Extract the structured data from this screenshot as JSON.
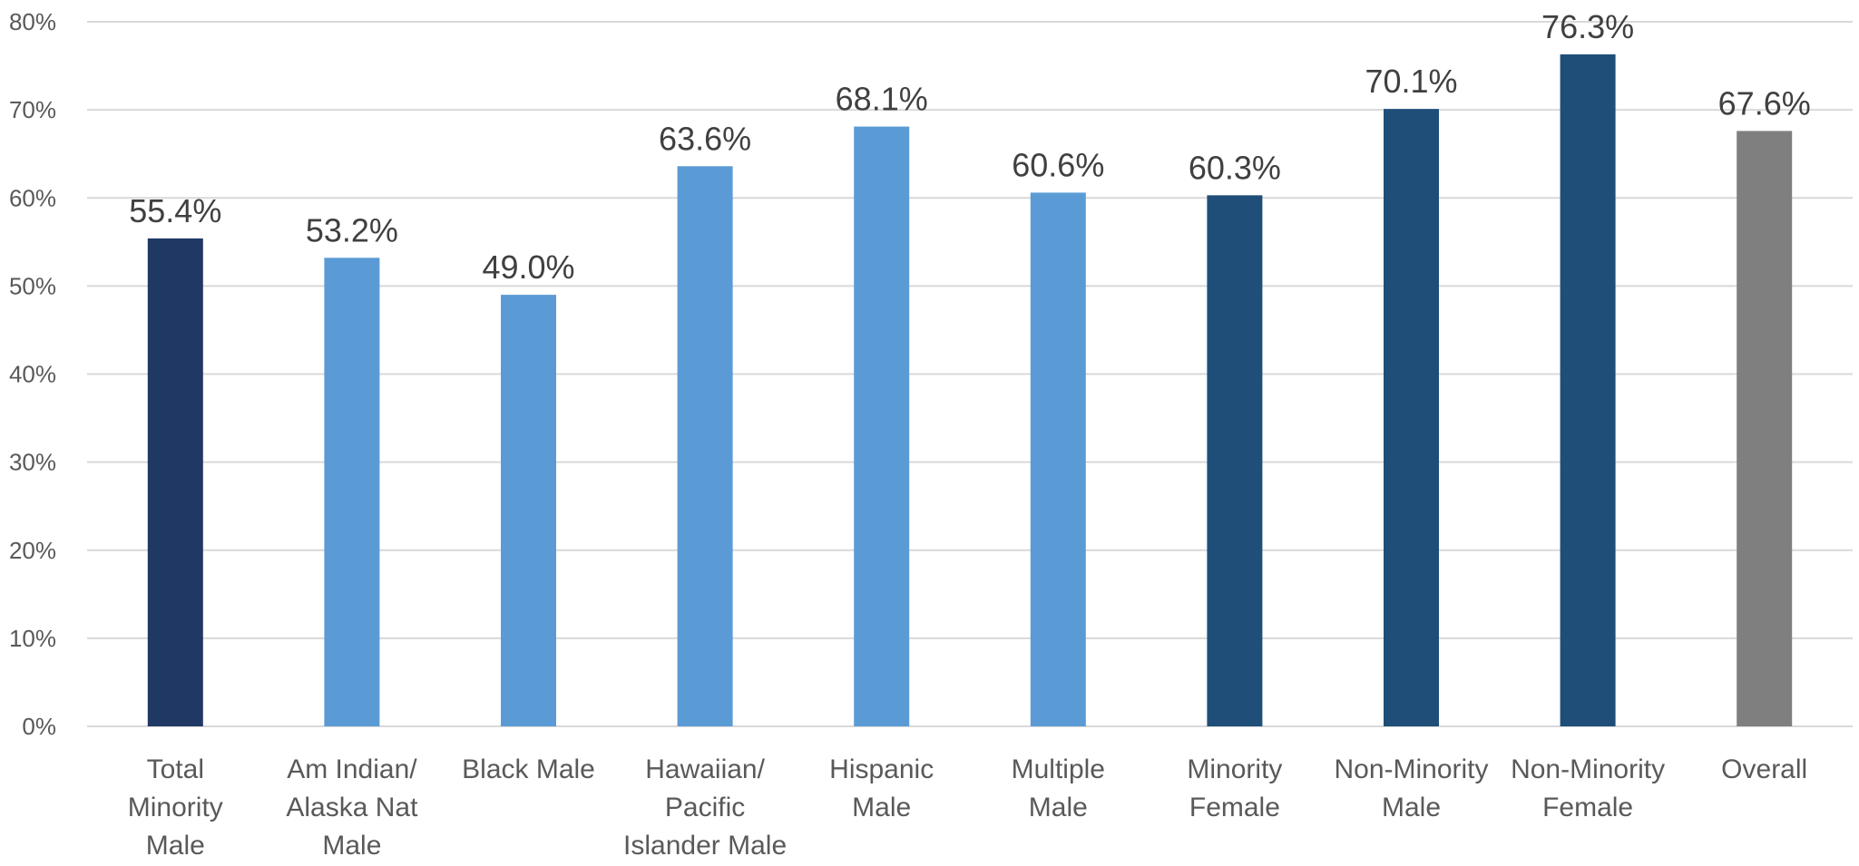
{
  "chart_data": {
    "type": "bar",
    "title": "",
    "xlabel": "",
    "ylabel": "",
    "ylim": [
      0,
      80
    ],
    "y_ticks": [
      "0%",
      "10%",
      "20%",
      "30%",
      "40%",
      "50%",
      "60%",
      "70%",
      "80%"
    ],
    "y_tick_values": [
      0,
      10,
      20,
      30,
      40,
      50,
      60,
      70,
      80
    ],
    "grid": true,
    "legend": "none",
    "categories": [
      [
        "Total",
        "Minority",
        "Male"
      ],
      [
        "Am Indian/",
        "Alaska Nat",
        "Male"
      ],
      [
        "Black Male"
      ],
      [
        "Hawaiian/",
        "Pacific",
        "Islander Male"
      ],
      [
        "Hispanic",
        "Male"
      ],
      [
        "Multiple",
        "Male"
      ],
      [
        "Minority",
        "Female"
      ],
      [
        "Non-Minority",
        "Male"
      ],
      [
        "Non-Minority",
        "Female"
      ],
      [
        "Overall"
      ]
    ],
    "values": [
      55.4,
      53.2,
      49.0,
      63.6,
      68.1,
      60.6,
      60.3,
      70.1,
      76.3,
      67.6
    ],
    "data_labels": [
      "55.4%",
      "53.2%",
      "49.0%",
      "63.6%",
      "68.1%",
      "60.6%",
      "60.3%",
      "70.1%",
      "76.3%",
      "67.6%"
    ],
    "colors": [
      "#203864",
      "#5b9bd5",
      "#5b9bd5",
      "#5b9bd5",
      "#5b9bd5",
      "#5b9bd5",
      "#1f4e79",
      "#1f4e79",
      "#1f4e79",
      "#7f7f7f"
    ]
  }
}
